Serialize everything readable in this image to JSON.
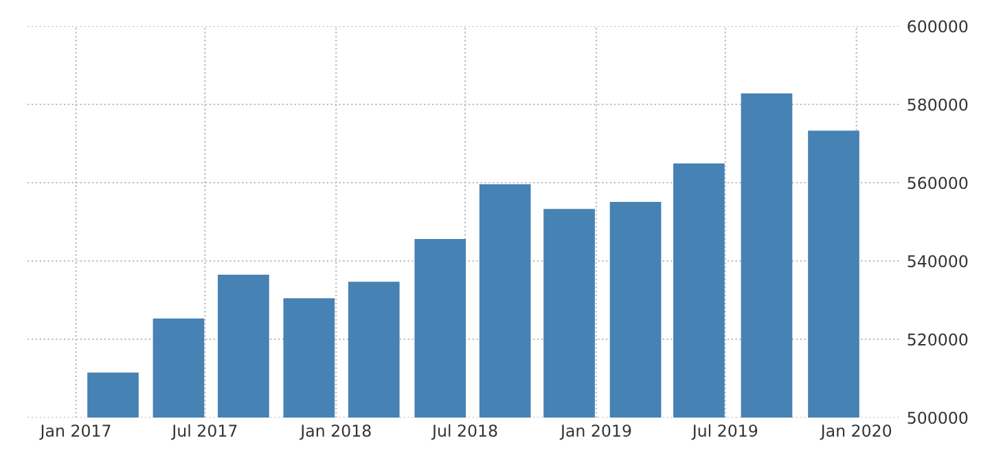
{
  "chart_data": {
    "type": "bar",
    "x": [
      "2017-02-22",
      "2017-05-25",
      "2017-08-24",
      "2017-11-24",
      "2018-02-23",
      "2018-05-27",
      "2018-08-26",
      "2018-11-24",
      "2019-02-25",
      "2019-05-25",
      "2019-08-28",
      "2019-11-30"
    ],
    "values": [
      511500,
      525300,
      536500,
      530500,
      534700,
      545600,
      559600,
      553300,
      555100,
      564900,
      582800,
      573300
    ],
    "color": "#4682b4",
    "xlim": [
      "2016-10-25",
      "2020-03-02"
    ],
    "xticks": [
      {
        "value": "2017-01-01",
        "label": "Jan 2017"
      },
      {
        "value": "2017-07-01",
        "label": "Jul 2017"
      },
      {
        "value": "2018-01-01",
        "label": "Jan 2018"
      },
      {
        "value": "2018-07-01",
        "label": "Jul 2018"
      },
      {
        "value": "2019-01-01",
        "label": "Jan 2019"
      },
      {
        "value": "2019-07-01",
        "label": "Jul 2019"
      },
      {
        "value": "2020-01-01",
        "label": "Jan 2020"
      }
    ],
    "ylim": [
      500000,
      600000
    ],
    "yticks": [
      500000,
      520000,
      540000,
      560000,
      580000,
      600000
    ],
    "grid": true
  }
}
